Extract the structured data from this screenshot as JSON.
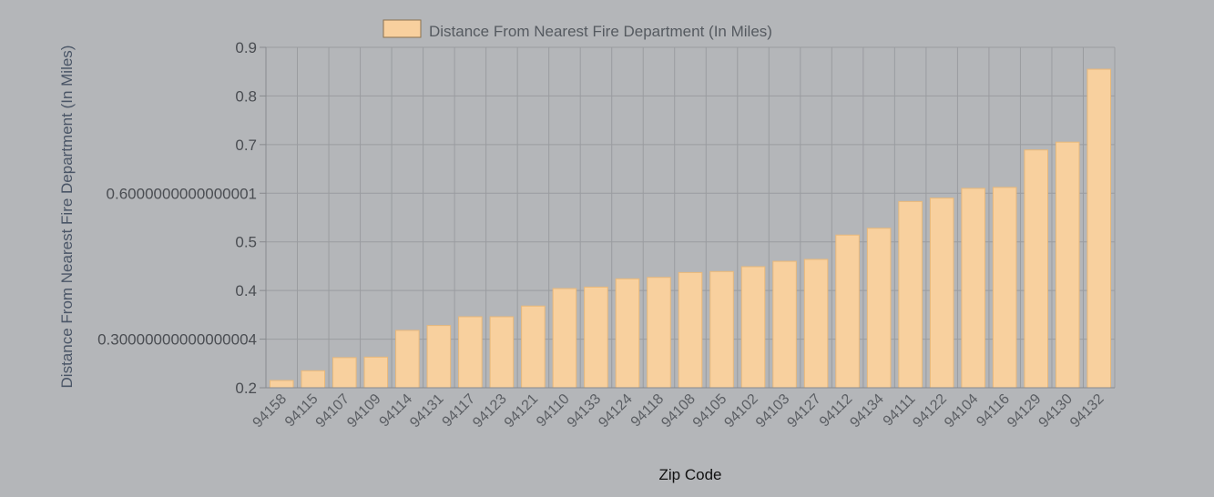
{
  "chart_data": {
    "type": "bar",
    "legend": {
      "label": "Distance From Nearest Fire Department (In Miles)",
      "placement": "top"
    },
    "xlabel": "Zip Code",
    "ylabel": "Distance From Nearest Fire Department (In Miles)",
    "ylim": [
      0.2,
      0.9
    ],
    "y_ticks": [
      0.2,
      0.3,
      0.4,
      0.5,
      0.6,
      0.7,
      0.8,
      0.9
    ],
    "y_tick_labels": [
      "0.2",
      "0.30000000000000004",
      "0.4",
      "0.5",
      "0.6000000000000001",
      "0.7",
      "0.8",
      "0.9"
    ],
    "grid": true,
    "categories": [
      "94158",
      "94115",
      "94107",
      "94109",
      "94114",
      "94131",
      "94117",
      "94123",
      "94121",
      "94110",
      "94133",
      "94124",
      "94118",
      "94108",
      "94105",
      "94102",
      "94103",
      "94127",
      "94112",
      "94134",
      "94111",
      "94122",
      "94104",
      "94116",
      "94129",
      "94130",
      "94132"
    ],
    "series": [
      {
        "name": "Distance From Nearest Fire Department (In Miles)",
        "values": [
          0.215,
          0.235,
          0.262,
          0.263,
          0.318,
          0.328,
          0.346,
          0.346,
          0.368,
          0.404,
          0.407,
          0.424,
          0.427,
          0.437,
          0.439,
          0.449,
          0.46,
          0.464,
          0.514,
          0.528,
          0.583,
          0.59,
          0.61,
          0.612,
          0.689,
          0.705,
          0.855
        ]
      }
    ],
    "colors": {
      "bar": "#f8d09e",
      "bar_stroke": "#e8b87a",
      "grid": "#9a9ca0",
      "background": "#b4b6b9"
    }
  }
}
